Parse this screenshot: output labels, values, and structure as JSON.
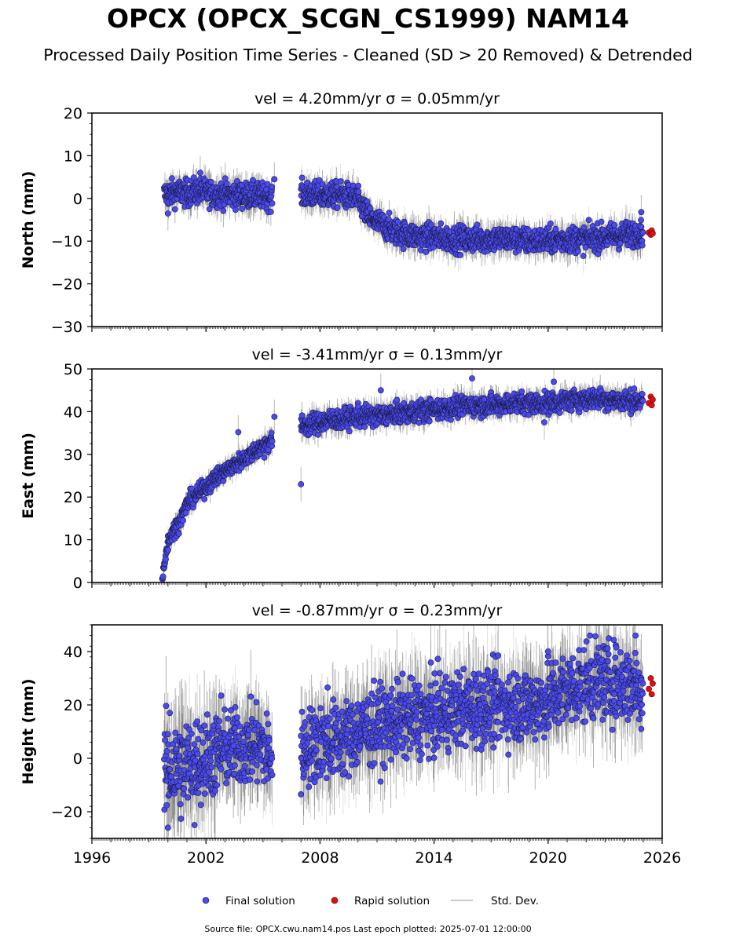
{
  "figure": {
    "title": "OPCX (OPCX_SCGN_CS1999) NAM14",
    "subtitle": "Processed Daily Position Time Series - Cleaned (SD > 20 Removed) & Detrended",
    "source_note": "Source file: OPCX.cwu.nam14.pos  Last epoch plotted: 2025-07-01 12:00:00"
  },
  "colors": {
    "final": "#4a4af0",
    "final_edge": "#1a1a40",
    "rapid": "#e01010",
    "rapid_edge": "#600000",
    "stddev": "#b8b8b8",
    "stddev_dark": "#555555"
  },
  "legend": {
    "position": "bottom-center",
    "items": [
      {
        "label": "Final solution",
        "marker": "dot",
        "color": "#4a4af0"
      },
      {
        "label": "Rapid solution",
        "marker": "dot",
        "color": "#e01010"
      },
      {
        "label": "Std. Dev.",
        "marker": "line",
        "color": "#b8b8b8"
      }
    ]
  },
  "chart_data": [
    {
      "type": "scatter",
      "panel": "north",
      "title": "vel = 4.20mm/yr   σ = 0.05mm/yr",
      "ylabel": "North (mm)",
      "xlabel": "",
      "xlim": [
        1996,
        2026
      ],
      "ylim": [
        -30,
        20
      ],
      "yticks": [
        -30,
        -20,
        -10,
        0,
        10,
        20
      ],
      "xticks": [
        1996,
        2002,
        2008,
        2014,
        2020,
        2026
      ],
      "show_xtick_labels": false,
      "grid": false,
      "series": [
        {
          "name": "Final solution",
          "marker": "dot",
          "color": "#4a4af0",
          "x": [
            1999.8,
            2000.5,
            2001.0,
            2001.5,
            2002.0,
            2002.5,
            2003.0,
            2003.5,
            2004.0,
            2004.5,
            2005.0,
            2005.5,
            2007.0,
            2007.5,
            2008.0,
            2008.5,
            2009.0,
            2009.5,
            2009.9,
            2010.3,
            2010.7,
            2011.2,
            2011.8,
            2012.5,
            2013.3,
            2014.0,
            2015.0,
            2016.0,
            2017.0,
            2018.0,
            2019.0,
            2020.0,
            2021.0,
            2022.0,
            2023.0,
            2024.0,
            2025.0
          ],
          "y": [
            1.0,
            1.5,
            1.2,
            1.8,
            1.5,
            1.0,
            1.0,
            0.8,
            0.8,
            0.6,
            0.6,
            0.5,
            1.0,
            1.0,
            0.8,
            0.8,
            0.8,
            0.5,
            0.0,
            -2.5,
            -5.0,
            -6.0,
            -7.5,
            -8.5,
            -9.0,
            -9.0,
            -9.5,
            -9.5,
            -9.5,
            -9.5,
            -10.0,
            -9.8,
            -9.5,
            -9.5,
            -9.0,
            -8.5,
            -8.0
          ],
          "spread": [
            1.5,
            1.5,
            1.5,
            1.5,
            1.5,
            1.5,
            1.5,
            1.5,
            1.5,
            1.5,
            1.5,
            1.5,
            1.5,
            1.5,
            1.5,
            1.5,
            1.5,
            1.5,
            1.5,
            1.5,
            1.5,
            1.5,
            1.5,
            1.5,
            1.5,
            1.5,
            1.5,
            1.5,
            1.5,
            1.5,
            1.5,
            1.5,
            1.5,
            1.5,
            1.5,
            1.5,
            1.5
          ]
        },
        {
          "name": "Rapid solution",
          "marker": "dot",
          "color": "#e01010",
          "x": [
            2025.3,
            2025.4,
            2025.45,
            2025.5
          ],
          "y": [
            -8.0,
            -8.5,
            -7.5,
            -8.2
          ]
        }
      ],
      "outliers": [
        {
          "x": 2000.0,
          "y": -3.5
        },
        {
          "x": 2001.7,
          "y": 6.0
        },
        {
          "x": 2005.6,
          "y": 4.5
        },
        {
          "x": 2024.9,
          "y": -3.2
        }
      ]
    },
    {
      "type": "scatter",
      "panel": "east",
      "title": "vel = -3.41mm/yr   σ = 0.13mm/yr",
      "ylabel": "East (mm)",
      "xlabel": "",
      "xlim": [
        1996,
        2026
      ],
      "ylim": [
        0,
        50
      ],
      "yticks": [
        0,
        10,
        20,
        30,
        40,
        50
      ],
      "xticks": [
        1996,
        2002,
        2008,
        2014,
        2020,
        2026
      ],
      "show_xtick_labels": false,
      "grid": false,
      "series": [
        {
          "name": "Final solution",
          "marker": "dot",
          "color": "#4a4af0",
          "x": [
            1999.7,
            1999.8,
            1999.9,
            2000.0,
            2000.2,
            2000.5,
            2000.8,
            2001.0,
            2001.5,
            2002.0,
            2002.5,
            2003.0,
            2003.5,
            2004.0,
            2004.5,
            2005.0,
            2005.5,
            2007.0,
            2007.5,
            2008.0,
            2008.5,
            2009.0,
            2009.5,
            2010.0,
            2011.0,
            2012.0,
            2013.0,
            2014.0,
            2015.0,
            2016.0,
            2017.0,
            2018.0,
            2019.0,
            2020.0,
            2021.0,
            2022.0,
            2023.0,
            2024.0,
            2025.0
          ],
          "y": [
            1.0,
            4.0,
            7.0,
            9.5,
            11.5,
            13.5,
            16.0,
            18.5,
            20.5,
            22.5,
            24.5,
            26.0,
            27.5,
            29.0,
            30.5,
            32.0,
            33.5,
            36.5,
            37.0,
            37.5,
            38.0,
            38.0,
            38.5,
            39.0,
            39.0,
            39.5,
            40.0,
            40.5,
            41.0,
            41.5,
            41.5,
            42.0,
            42.0,
            42.0,
            42.5,
            43.0,
            43.0,
            42.5,
            42.5
          ],
          "spread": [
            0.5,
            0.8,
            1.0,
            1.0,
            1.0,
            1.0,
            1.0,
            1.0,
            1.0,
            1.0,
            1.0,
            1.0,
            1.0,
            1.0,
            1.0,
            1.2,
            1.2,
            1.2,
            1.2,
            1.2,
            1.2,
            1.2,
            1.2,
            1.2,
            1.2,
            1.2,
            1.2,
            1.2,
            1.2,
            1.2,
            1.2,
            1.2,
            1.2,
            1.2,
            1.2,
            1.2,
            1.2,
            1.2,
            1.2
          ]
        },
        {
          "name": "Rapid solution",
          "marker": "dot",
          "color": "#e01010",
          "x": [
            2025.3,
            2025.4,
            2025.45,
            2025.5
          ],
          "y": [
            42.0,
            43.5,
            41.5,
            42.8
          ]
        }
      ],
      "outliers": [
        {
          "x": 2007.0,
          "y": 23.0
        },
        {
          "x": 2003.7,
          "y": 35.2
        },
        {
          "x": 2011.2,
          "y": 45.0
        },
        {
          "x": 2016.0,
          "y": 47.8
        },
        {
          "x": 2019.8,
          "y": 37.5
        },
        {
          "x": 2020.3,
          "y": 47.0
        },
        {
          "x": 2005.6,
          "y": 38.8
        }
      ]
    },
    {
      "type": "scatter",
      "panel": "height",
      "title": "vel = -0.87mm/yr   σ = 0.23mm/yr",
      "ylabel": "Height (mm)",
      "xlabel": "",
      "xlim": [
        1996,
        2026
      ],
      "ylim": [
        -30,
        50
      ],
      "yticks": [
        -20,
        0,
        20,
        40
      ],
      "xticks": [
        1996,
        2002,
        2008,
        2014,
        2020,
        2026
      ],
      "xtick_labels": [
        "1996",
        "2002",
        "2008",
        "2014",
        "2020",
        "2026"
      ],
      "show_xtick_labels": true,
      "grid": false,
      "series": [
        {
          "name": "Final solution",
          "marker": "dot",
          "color": "#4a4af0",
          "x": [
            1999.8,
            2000.5,
            2001.0,
            2001.5,
            2002.0,
            2002.5,
            2003.0,
            2003.5,
            2004.0,
            2004.5,
            2005.0,
            2005.5,
            2007.0,
            2007.5,
            2008.0,
            2008.5,
            2009.0,
            2009.5,
            2010.0,
            2011.0,
            2012.0,
            2013.0,
            2014.0,
            2015.0,
            2016.0,
            2017.0,
            2018.0,
            2019.0,
            2020.0,
            2021.0,
            2022.0,
            2023.0,
            2024.0,
            2025.0
          ],
          "y": [
            -5.0,
            -4.0,
            -3.0,
            0.0,
            0.0,
            2.0,
            3.0,
            4.0,
            4.0,
            5.0,
            4.0,
            0.0,
            3.0,
            5.0,
            6.0,
            6.0,
            7.0,
            8.0,
            10.0,
            12.0,
            14.0,
            15.0,
            16.0,
            18.0,
            19.0,
            20.0,
            20.0,
            20.0,
            22.0,
            26.0,
            28.0,
            29.0,
            28.0,
            27.0
          ],
          "spread": [
            9,
            9,
            8,
            8,
            8,
            7,
            7,
            7,
            7,
            7,
            7,
            7,
            7,
            7,
            7,
            7,
            7,
            7,
            7,
            7,
            7,
            7,
            7,
            7,
            7,
            7,
            7,
            7,
            7,
            7,
            7,
            7,
            7,
            7
          ]
        },
        {
          "name": "Rapid solution",
          "marker": "dot",
          "color": "#e01010",
          "x": [
            2025.3,
            2025.4,
            2025.45,
            2025.5
          ],
          "y": [
            26.0,
            30.0,
            24.0,
            28.0
          ]
        }
      ],
      "outliers": [
        {
          "x": 2000.1,
          "y": 17.0
        },
        {
          "x": 2000.0,
          "y": -26.0
        },
        {
          "x": 2001.4,
          "y": -25.0
        },
        {
          "x": 2002.8,
          "y": 23.5
        },
        {
          "x": 2008.4,
          "y": 26.5
        },
        {
          "x": 2020.0,
          "y": 40.0
        },
        {
          "x": 2022.2,
          "y": 46.0
        },
        {
          "x": 2024.6,
          "y": 46.0
        },
        {
          "x": 2024.9,
          "y": 11.0
        },
        {
          "x": 2007.0,
          "y": -13.5
        }
      ]
    }
  ]
}
